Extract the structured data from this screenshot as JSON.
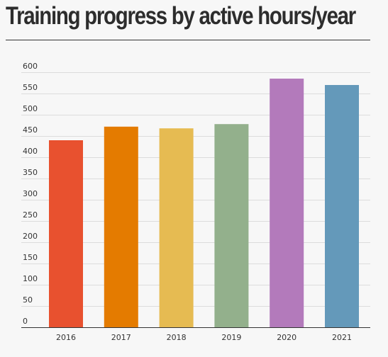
{
  "chart_data": {
    "type": "bar",
    "title": "Training progress by active hours/year",
    "categories": [
      "2016",
      "2017",
      "2018",
      "2019",
      "2020",
      "2021"
    ],
    "values": [
      440,
      472,
      468,
      478,
      585,
      570
    ],
    "colors": [
      "#e8512f",
      "#e47b00",
      "#e6bb52",
      "#93b08c",
      "#b37abb",
      "#6499ba"
    ],
    "xlabel": "",
    "ylabel": "",
    "ylim": [
      0,
      600
    ],
    "yticks": [
      0,
      50,
      100,
      150,
      200,
      250,
      300,
      350,
      400,
      450,
      500,
      550,
      600
    ],
    "grid": true,
    "legend": "none"
  }
}
